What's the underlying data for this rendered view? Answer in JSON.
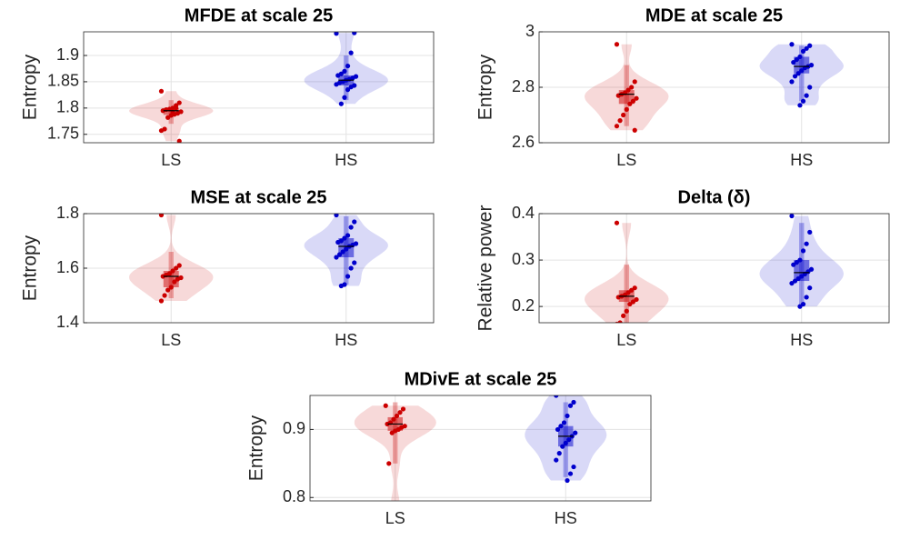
{
  "chart_data": [
    {
      "type": "violin",
      "title": "MFDE at scale 25",
      "ylabel": "Entropy",
      "categories": [
        "LS",
        "HS"
      ],
      "colors": [
        "#cc0000",
        "#0000cc"
      ],
      "points": [
        [
          1.832,
          1.81,
          1.805,
          1.8,
          1.798,
          1.797,
          1.795,
          1.793,
          1.79,
          1.788,
          1.786,
          1.782,
          1.76,
          1.757,
          1.737,
          1.8,
          1.792
        ],
        [
          1.942,
          1.943,
          1.905,
          1.88,
          1.87,
          1.865,
          1.862,
          1.86,
          1.857,
          1.855,
          1.853,
          1.85,
          1.848,
          1.845,
          1.843,
          1.84,
          1.835,
          1.82,
          1.808
        ]
      ],
      "median": [
        1.795,
        1.853
      ],
      "q1": [
        1.787,
        1.843
      ],
      "q3": [
        1.8,
        1.862
      ],
      "whisker_low": [
        1.77,
        1.815
      ],
      "whisker_high": [
        1.815,
        1.9
      ],
      "ylim": [
        1.734,
        1.945
      ],
      "yticks": [
        1.75,
        1.8,
        1.85,
        1.9
      ],
      "grid": true
    },
    {
      "type": "violin",
      "title": "MDE at scale 25",
      "ylabel": "Entropy",
      "categories": [
        "LS",
        "HS"
      ],
      "colors": [
        "#cc0000",
        "#0000cc"
      ],
      "points": [
        [
          2.955,
          2.82,
          2.8,
          2.79,
          2.78,
          2.775,
          2.77,
          2.76,
          2.75,
          2.74,
          2.72,
          2.7,
          2.68,
          2.66,
          2.645
        ],
        [
          2.955,
          2.95,
          2.94,
          2.93,
          2.91,
          2.9,
          2.89,
          2.88,
          2.875,
          2.87,
          2.86,
          2.85,
          2.84,
          2.82,
          2.8,
          2.77,
          2.75,
          2.735
        ]
      ],
      "median": [
        2.775,
        2.875
      ],
      "q1": [
        2.74,
        2.85
      ],
      "q3": [
        2.79,
        2.91
      ],
      "whisker_low": [
        2.66,
        2.75
      ],
      "whisker_high": [
        2.88,
        2.95
      ],
      "ylim": [
        2.6,
        3.0
      ],
      "yticks": [
        2.6,
        2.8,
        3
      ],
      "grid": true
    },
    {
      "type": "violin",
      "title": "MSE at scale 25",
      "ylabel": "Entropy",
      "categories": [
        "LS",
        "HS"
      ],
      "colors": [
        "#cc0000",
        "#0000cc"
      ],
      "points": [
        [
          1.795,
          1.61,
          1.6,
          1.59,
          1.58,
          1.575,
          1.57,
          1.565,
          1.56,
          1.55,
          1.53,
          1.52,
          1.5,
          1.48
        ],
        [
          1.795,
          1.77,
          1.75,
          1.72,
          1.71,
          1.7,
          1.695,
          1.69,
          1.685,
          1.68,
          1.67,
          1.66,
          1.65,
          1.64,
          1.62,
          1.6,
          1.57,
          1.54,
          1.535
        ]
      ],
      "median": [
        1.57,
        1.68
      ],
      "q1": [
        1.53,
        1.64
      ],
      "q3": [
        1.59,
        1.71
      ],
      "whisker_low": [
        1.49,
        1.54
      ],
      "whisker_high": [
        1.66,
        1.79
      ],
      "ylim": [
        1.4,
        1.8
      ],
      "yticks": [
        1.4,
        1.6,
        1.8
      ],
      "grid": true
    },
    {
      "type": "violin",
      "title": "Delta (δ)",
      "ylabel": "Relative power",
      "categories": [
        "LS",
        "HS"
      ],
      "colors": [
        "#cc0000",
        "#0000cc"
      ],
      "points": [
        [
          0.38,
          0.24,
          0.235,
          0.23,
          0.225,
          0.222,
          0.22,
          0.215,
          0.21,
          0.205,
          0.19,
          0.18,
          0.165,
          0.162
        ],
        [
          0.395,
          0.36,
          0.335,
          0.32,
          0.3,
          0.295,
          0.29,
          0.28,
          0.275,
          0.27,
          0.265,
          0.26,
          0.255,
          0.25,
          0.24,
          0.22,
          0.205,
          0.2
        ]
      ],
      "median": [
        0.222,
        0.273
      ],
      "q1": [
        0.21,
        0.255
      ],
      "q3": [
        0.235,
        0.3
      ],
      "whisker_low": [
        0.165,
        0.2
      ],
      "whisker_high": [
        0.29,
        0.38
      ],
      "ylim": [
        0.165,
        0.4
      ],
      "yticks": [
        0.2,
        0.3,
        0.4
      ],
      "grid": true
    },
    {
      "type": "violin",
      "title": "MDivE at scale 25",
      "ylabel": "Entropy",
      "categories": [
        "LS",
        "HS"
      ],
      "colors": [
        "#cc0000",
        "#0000cc"
      ],
      "points": [
        [
          0.935,
          0.93,
          0.925,
          0.92,
          0.915,
          0.91,
          0.908,
          0.905,
          0.903,
          0.9,
          0.898,
          0.895,
          0.85,
          0.79
        ],
        [
          0.95,
          0.94,
          0.935,
          0.92,
          0.91,
          0.905,
          0.9,
          0.895,
          0.89,
          0.885,
          0.88,
          0.875,
          0.865,
          0.855,
          0.845,
          0.835,
          0.825
        ]
      ],
      "median": [
        0.908,
        0.89
      ],
      "q1": [
        0.898,
        0.875
      ],
      "q3": [
        0.918,
        0.905
      ],
      "whisker_low": [
        0.85,
        0.83
      ],
      "whisker_high": [
        0.94,
        0.94
      ],
      "ylim": [
        0.795,
        0.95
      ],
      "yticks": [
        0.8,
        0.9
      ],
      "grid": true
    }
  ]
}
